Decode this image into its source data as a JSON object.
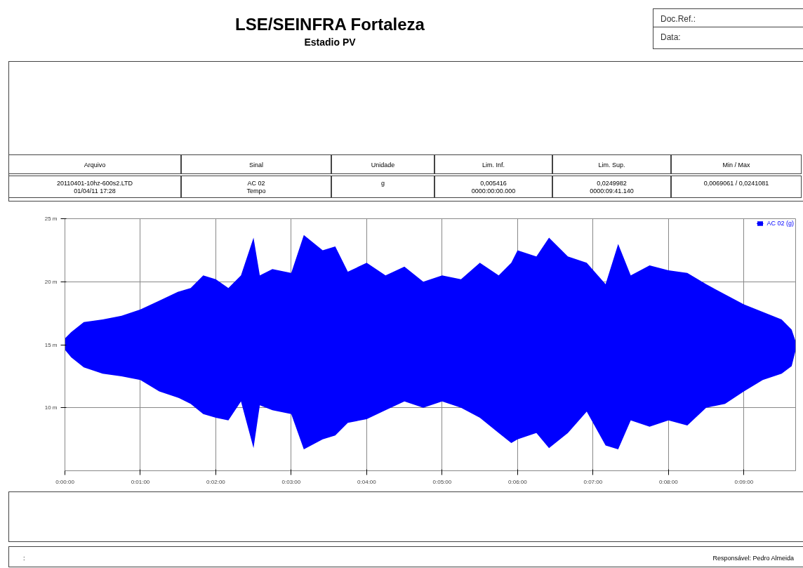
{
  "chart_data": {
    "type": "line",
    "title": "LSE/SEINFRA Fortaleza",
    "subtitle": "Estadio PV",
    "annotations": [
      "Doc.Ref.:",
      "Data:",
      "Arquivo",
      "Sinal",
      "Unidade",
      "Lim. Inf.",
      "Lim. Sup.",
      "Min / Max",
      "20110401-10hz-600s2.LTD\n01/04/11 17:28",
      "AC 02\nTempo",
      "g",
      "0,005416\n0000:00:00.000",
      "0,0249982\n0000:09:41.140",
      "0,0069061 / 0,0241081",
      ":",
      "Responsável: Pedro Almeida"
    ],
    "x": [
      0,
      5,
      15,
      30,
      45,
      60,
      75,
      90,
      100,
      110,
      120,
      130,
      140,
      150,
      155,
      165,
      180,
      190,
      205,
      215,
      225,
      240,
      255,
      270,
      285,
      300,
      315,
      330,
      345,
      355,
      360,
      375,
      385,
      400,
      415,
      430,
      440,
      450,
      465,
      480,
      495,
      510,
      525,
      540,
      555,
      570,
      578,
      581
    ],
    "series": [
      {
        "name": "AC 02 (g)",
        "color": "#0000ff",
        "values": [
          null,
          null,
          null,
          null,
          null,
          null,
          null,
          null,
          null,
          null,
          null,
          null,
          null,
          null,
          null,
          null,
          null,
          null,
          null,
          null,
          null,
          null,
          null,
          null,
          null,
          null,
          null,
          null,
          null,
          null,
          null,
          null,
          null,
          null,
          null,
          null,
          null,
          null,
          null,
          null,
          null,
          null,
          null,
          null,
          null,
          null,
          null,
          null
        ],
        "upper": [
          15.5,
          16.0,
          16.8,
          17.0,
          17.3,
          17.8,
          18.5,
          19.2,
          19.5,
          20.5,
          20.2,
          19.5,
          20.5,
          23.5,
          20.5,
          21.0,
          20.7,
          23.7,
          22.5,
          22.8,
          20.8,
          21.5,
          20.5,
          21.2,
          20.0,
          20.5,
          20.2,
          21.5,
          20.5,
          21.5,
          22.5,
          22.0,
          23.5,
          22.0,
          21.5,
          19.8,
          23.0,
          20.5,
          21.3,
          20.9,
          20.7,
          19.8,
          19.0,
          18.2,
          17.6,
          17.0,
          16.2,
          15.3
        ],
        "lower": [
          14.6,
          14.0,
          13.2,
          12.7,
          12.5,
          12.2,
          11.3,
          10.8,
          10.3,
          9.5,
          9.2,
          9.0,
          10.5,
          6.8,
          10.2,
          9.8,
          9.5,
          6.7,
          7.5,
          7.8,
          8.8,
          9.1,
          9.8,
          10.5,
          10.0,
          10.5,
          10.0,
          9.2,
          8.0,
          7.2,
          7.5,
          8.0,
          6.8,
          8.0,
          9.7,
          7.0,
          6.7,
          9.0,
          8.5,
          9.0,
          8.6,
          10.0,
          10.3,
          11.3,
          12.2,
          12.7,
          13.3,
          14.5
        ]
      }
    ],
    "xlim": [
      0,
      581.14
    ],
    "xticks": [
      {
        "value": 0,
        "label": "0:00:00"
      },
      {
        "value": 60,
        "label": "0:01:00"
      },
      {
        "value": 120,
        "label": "0:02:00"
      },
      {
        "value": 180,
        "label": "0:03:00"
      },
      {
        "value": 240,
        "label": "0:04:00"
      },
      {
        "value": 300,
        "label": "0:05:00"
      },
      {
        "value": 360,
        "label": "0:06:00"
      },
      {
        "value": 420,
        "label": "0:07:00"
      },
      {
        "value": 480,
        "label": "0:08:00"
      },
      {
        "value": 540,
        "label": "0:09:00"
      }
    ],
    "ylim": [
      5,
      25
    ],
    "yticks": [
      {
        "value": 10,
        "label": "10 m"
      },
      {
        "value": 15,
        "label": "15 m"
      },
      {
        "value": 20,
        "label": "20 m"
      },
      {
        "value": 25,
        "label": "25 m"
      }
    ],
    "grid": true,
    "legend": "top right"
  }
}
